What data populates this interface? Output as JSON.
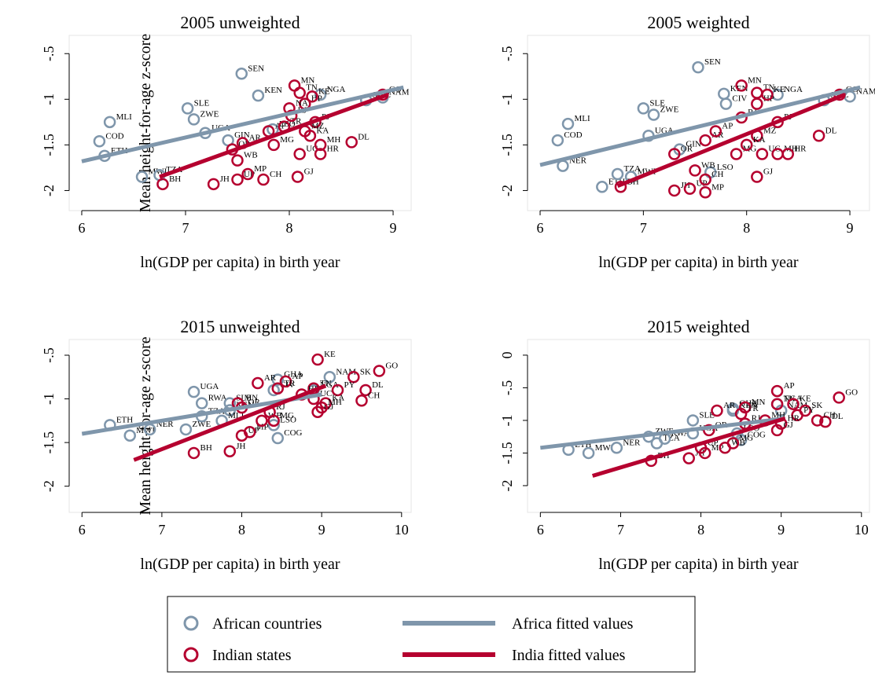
{
  "chart_data": [
    {
      "type": "scatter",
      "title": "2005 unweighted",
      "xlabel": "ln(GDP per capita) in birth year",
      "ylabel": "Mean height-for-age z-score",
      "xlim": [
        5.879,
        9.174
      ],
      "ylim": [
        -2.22,
        -0.3
      ],
      "xticks": [
        6,
        7,
        8,
        9
      ],
      "yticks": [
        {
          "value": -0.5,
          "label": "-.5"
        },
        -1,
        -1.5,
        -2
      ],
      "series": [
        {
          "name": "African countries",
          "type": "scatter",
          "color": "#7f96ab",
          "x": [
            6.17,
            6.27,
            6.22,
            6.58,
            6.75,
            7.02,
            7.08,
            7.19,
            7.41,
            7.54,
            7.7,
            7.84,
            8.3,
            8.74,
            8.9
          ],
          "values": [
            -1.46,
            -1.25,
            -1.62,
            -1.85,
            -1.83,
            -1.1,
            -1.22,
            -1.37,
            -1.45,
            -0.72,
            -0.96,
            -1.33,
            -0.95,
            -1.01,
            -0.98
          ],
          "labels": [
            "COD",
            "MLI",
            "ETH",
            "MWI",
            "TZA",
            "SLE",
            "ZWE",
            "UGA",
            "GIN",
            "SEN",
            "KEN",
            "LSO",
            "NGA",
            "SWZ",
            "NAM"
          ]
        },
        {
          "name": "Indian states",
          "type": "scatter",
          "color": "#b5002f",
          "x": [
            6.78,
            7.27,
            7.5,
            7.6,
            7.75,
            7.5,
            7.45,
            7.55,
            7.8,
            7.85,
            7.95,
            8.02,
            8.05,
            8.1,
            8.15,
            8.1,
            8.08,
            8.3,
            8.25,
            8.6,
            8.3,
            8.9,
            8.0,
            8.15,
            8.2,
            8.22
          ],
          "values": [
            -1.93,
            -1.93,
            -1.88,
            -1.82,
            -1.88,
            -1.67,
            -1.55,
            -1.48,
            -1.35,
            -1.5,
            -1.3,
            -1.18,
            -0.85,
            -0.93,
            -1.05,
            -1.6,
            -1.85,
            -1.5,
            -1.25,
            -1.47,
            -1.6,
            -0.95,
            -1.1,
            -1.35,
            -1.4,
            -0.97
          ],
          "labels": [
            "BH",
            "JH",
            "UP",
            "MP",
            "CH",
            "WB",
            "OR",
            "AR",
            "AP",
            "MG",
            "TR",
            "RJ",
            "MN",
            "TN",
            "HP",
            "UC",
            "GJ",
            "MH",
            "PJ",
            "DL",
            "HR",
            "GO",
            "NA",
            "MZ",
            "KA",
            "KE"
          ]
        },
        {
          "name": "Africa fitted values",
          "type": "line",
          "color": "#7f96ab",
          "x": [
            6,
            9.1
          ],
          "values": [
            -1.68,
            -0.87
          ]
        },
        {
          "name": "India fitted values",
          "type": "line",
          "color": "#b5002f",
          "x": [
            6.75,
            8.95
          ],
          "values": [
            -1.85,
            -0.95
          ]
        }
      ]
    },
    {
      "type": "scatter",
      "title": "2005 weighted",
      "xlabel": "ln(GDP per capita) in birth year",
      "xlim": [
        5.878,
        9.19
      ],
      "ylim": [
        -2.22,
        -0.3
      ],
      "xticks": [
        6,
        7,
        8,
        9
      ],
      "yticks": [
        {
          "value": -0.5,
          "label": "-.5"
        },
        -1,
        -1.5,
        -2
      ],
      "series": [
        {
          "name": "African countries",
          "type": "scatter",
          "color": "#7f96ab",
          "x": [
            6.17,
            6.27,
            6.22,
            6.6,
            6.75,
            6.88,
            7.0,
            7.1,
            7.05,
            7.35,
            7.53,
            7.78,
            7.8,
            8.3,
            8.75,
            9.0,
            7.65
          ],
          "values": [
            -1.45,
            -1.27,
            -1.73,
            -1.96,
            -1.82,
            -1.85,
            -1.1,
            -1.17,
            -1.4,
            -1.55,
            -0.65,
            -0.94,
            -1.05,
            -0.95,
            -1.01,
            -0.97,
            -1.8
          ],
          "labels": [
            "COD",
            "MLI",
            "NER",
            "ETH",
            "TZA",
            "MWI",
            "SLE",
            "ZWE",
            "UGA",
            "GIN",
            "SEN",
            "KEN",
            "CIV",
            "NGA",
            "SWZ",
            "NAM",
            "LSO"
          ]
        },
        {
          "name": "Indian states",
          "type": "scatter",
          "color": "#b5002f",
          "x": [
            6.78,
            7.3,
            7.45,
            7.6,
            7.6,
            7.5,
            7.3,
            7.6,
            7.7,
            7.9,
            7.95,
            7.95,
            8.1,
            8.1,
            8.15,
            8.1,
            8.3,
            8.4,
            8.3,
            8.7,
            8.9,
            8.2,
            8.1,
            8.0
          ],
          "values": [
            -1.96,
            -2.0,
            -1.98,
            -2.02,
            -1.88,
            -1.78,
            -1.6,
            -1.45,
            -1.35,
            -1.6,
            -1.2,
            -0.85,
            -0.93,
            -1.05,
            -1.6,
            -1.85,
            -1.6,
            -1.6,
            -1.25,
            -1.4,
            -0.95,
            -0.95,
            -1.4,
            -1.5
          ],
          "labels": [
            "BH",
            "JH",
            "UP",
            "MP",
            "CH",
            "WB",
            "OR",
            "AR",
            "AP",
            "MG",
            "RJ",
            "MN",
            "TN",
            "HP",
            "UC",
            "GJ",
            "MH",
            "HR",
            "PJ",
            "DL",
            "GO",
            "KE",
            "MZ",
            "KA"
          ]
        },
        {
          "name": "Africa fitted values",
          "type": "line",
          "color": "#7f96ab",
          "x": [
            6,
            9.1
          ],
          "values": [
            -1.72,
            -0.87
          ]
        },
        {
          "name": "India fitted values",
          "type": "line",
          "color": "#b5002f",
          "x": [
            6.75,
            8.95
          ],
          "values": [
            -1.95,
            -0.95
          ]
        }
      ]
    },
    {
      "type": "scatter",
      "title": "2015 unweighted",
      "xlabel": "ln(GDP per capita) in birth year",
      "ylabel": "Mean height-for-age z-score",
      "xlim": [
        5.84,
        10.12
      ],
      "ylim": [
        -2.3,
        -0.32
      ],
      "xticks": [
        6,
        7,
        8,
        9,
        10
      ],
      "yticks": [
        {
          "value": -0.5,
          "label": "-.5"
        },
        -1,
        -1.5,
        -2
      ],
      "series": [
        {
          "name": "African countries",
          "type": "scatter",
          "color": "#7f96ab",
          "x": [
            6.35,
            6.6,
            6.85,
            7.3,
            7.5,
            7.5,
            7.4,
            7.85,
            7.85,
            8.4,
            8.45,
            8.45,
            8.9,
            8.4,
            9.1,
            7.75
          ],
          "values": [
            -1.3,
            -1.42,
            -1.35,
            -1.35,
            -1.2,
            -1.05,
            -0.92,
            -1.05,
            -1.13,
            -0.9,
            -1.45,
            -0.78,
            -0.9,
            -1.3,
            -0.75,
            -1.25
          ],
          "labels": [
            "ETH",
            "MWI",
            "NER",
            "ZWE",
            "TZA",
            "RWA",
            "UGA",
            "SLE",
            "KEN",
            "CIV",
            "COG",
            "GHA",
            "NGA",
            "LSO",
            "NAM",
            "MLI"
          ]
        },
        {
          "name": "Indian states",
          "type": "scatter",
          "color": "#b5002f",
          "x": [
            7.4,
            7.85,
            8.0,
            8.1,
            8.25,
            8.2,
            7.95,
            8.55,
            8.4,
            8.0,
            8.45,
            8.35,
            8.9,
            8.75,
            8.95,
            9.72,
            9.4,
            9.55,
            9.5,
            9.2,
            9.05,
            8.95,
            8.9,
            9.0
          ],
          "values": [
            -1.62,
            -1.6,
            -1.42,
            -1.38,
            -1.25,
            -0.82,
            -1.05,
            -0.8,
            -1.25,
            -1.1,
            -0.88,
            -1.15,
            -0.88,
            -0.95,
            -0.55,
            -0.68,
            -0.75,
            -0.9,
            -1.02,
            -0.9,
            -1.05,
            -1.15,
            -1.0,
            -1.1
          ],
          "labels": [
            "BH",
            "JH",
            "UP",
            "MP",
            "WB",
            "AR",
            "MN",
            "AP",
            "MG",
            "OR",
            "TR",
            "RJ",
            "TN",
            "HP",
            "KE",
            "GO",
            "SK",
            "DL",
            "CH",
            "PY",
            "KA",
            "GJ",
            "UC",
            "MH"
          ]
        },
        {
          "name": "Africa fitted values",
          "type": "line",
          "color": "#7f96ab",
          "x": [
            6,
            9.0
          ],
          "values": [
            -1.4,
            -0.95
          ]
        },
        {
          "name": "India fitted values",
          "type": "line",
          "color": "#b5002f",
          "x": [
            6.65,
            9.05
          ],
          "values": [
            -1.7,
            -0.85
          ]
        }
      ]
    },
    {
      "type": "scatter",
      "title": "2015 weighted",
      "xlabel": "ln(GDP per capita) in birth year",
      "xlim": [
        5.84,
        10.1
      ],
      "ylim": [
        -2.41,
        0.24
      ],
      "xticks": [
        6,
        7,
        8,
        9,
        10
      ],
      "yticks": [
        0,
        {
          "value": -0.5,
          "label": "-.5"
        },
        -1,
        -1.5,
        -2
      ],
      "series": [
        {
          "name": "African countries",
          "type": "scatter",
          "color": "#7f96ab",
          "x": [
            6.35,
            6.6,
            6.95,
            7.35,
            7.45,
            7.55,
            7.9,
            7.9,
            8.4,
            8.4,
            8.5,
            8.95,
            8.45,
            9.0
          ],
          "values": [
            -1.45,
            -1.5,
            -1.42,
            -1.25,
            -1.35,
            -1.28,
            -1.2,
            -1.0,
            -0.85,
            -0.82,
            -1.3,
            -0.75,
            -1.2,
            -0.85
          ],
          "labels": [
            "ETH",
            "MWI",
            "NER",
            "ZWE",
            "TZA",
            "RWA",
            "UGA",
            "SLE",
            "KEN",
            "GHA",
            "COG",
            "NGA",
            "LSO",
            "NAM"
          ]
        },
        {
          "name": "Indian states",
          "type": "scatter",
          "color": "#b5002f",
          "x": [
            7.38,
            7.85,
            8.0,
            8.05,
            8.3,
            8.1,
            8.2,
            8.95,
            8.55,
            8.5,
            8.55,
            8.4,
            8.95,
            9.15,
            9.72,
            9.3,
            9.55,
            9.45,
            9.2,
            9.0,
            8.95,
            8.8
          ],
          "values": [
            -1.62,
            -1.58,
            -1.42,
            -1.5,
            -1.42,
            -1.15,
            -0.85,
            -0.55,
            -0.8,
            -0.9,
            -1.05,
            -1.35,
            -0.75,
            -0.75,
            -0.65,
            -0.85,
            -1.02,
            -1.0,
            -0.92,
            -1.05,
            -1.15,
            -1.0
          ],
          "labels": [
            "BH",
            "JH",
            "UP",
            "MP",
            "WB",
            "OR",
            "AR",
            "AP",
            "MN",
            "TR",
            "RJ",
            "MG",
            "TN",
            "KE",
            "GO",
            "SK",
            "DL",
            "CH",
            "PY",
            "HR",
            "GJ",
            "MH"
          ]
        },
        {
          "name": "Africa fitted values",
          "type": "line",
          "color": "#7f96ab",
          "x": [
            6,
            9.05
          ],
          "values": [
            -1.42,
            -0.97
          ]
        },
        {
          "name": "India fitted values",
          "type": "line",
          "color": "#b5002f",
          "x": [
            6.65,
            9.05
          ],
          "values": [
            -1.85,
            -0.97
          ]
        }
      ]
    }
  ]
}
